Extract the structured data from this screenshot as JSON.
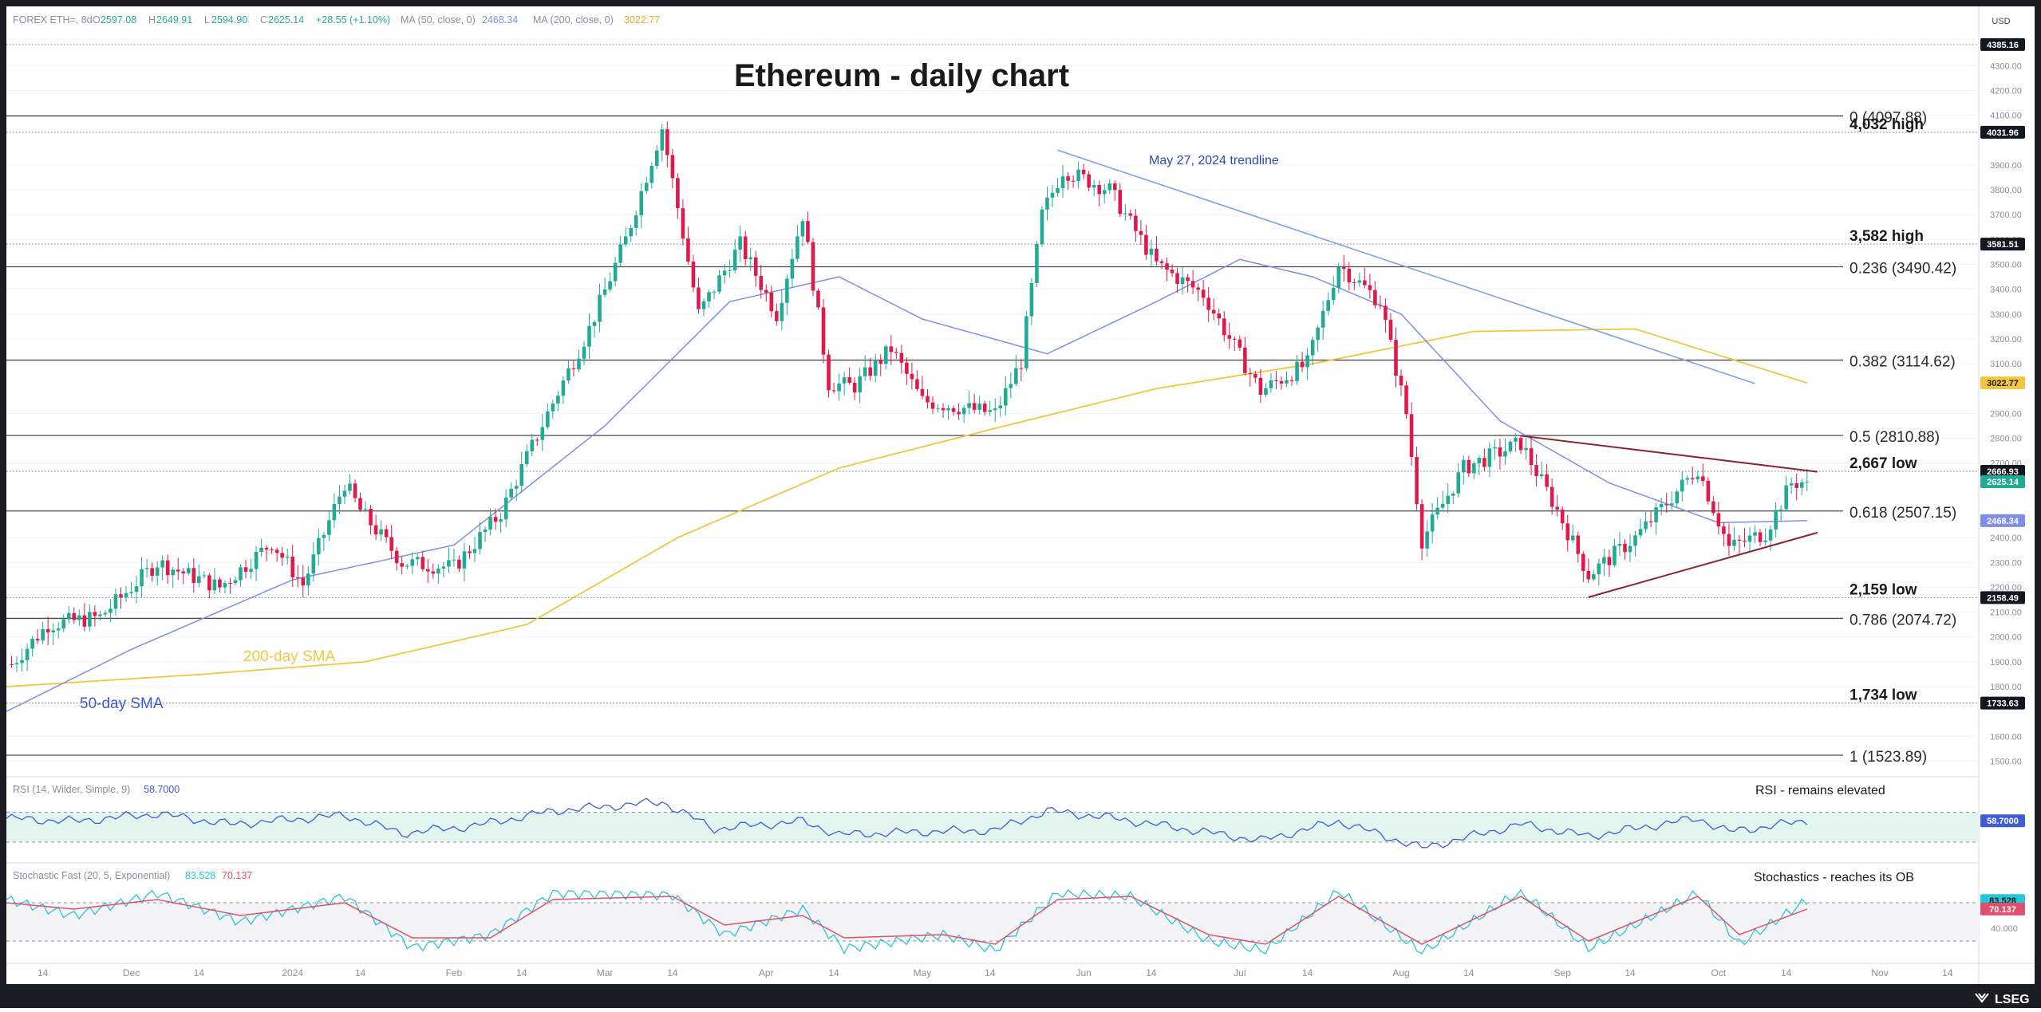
{
  "header": {
    "symbol": "FOREX ETH=, 8d",
    "open_label": "O",
    "open": "2597.08",
    "high_label": "H",
    "high": "2649.91",
    "low_label": "L",
    "low": "2594.90",
    "close_label": "C",
    "close": "2625.14",
    "change": "+28.55 (+1.10%)",
    "ma50_label": "MA (50, close, 0)",
    "ma50_value": "2468.34",
    "ma200_label": "MA (200, close, 0)",
    "ma200_value": "3022.77"
  },
  "colors": {
    "up": "#22ab94",
    "down": "#e0194a",
    "sma50": "#7f8ee8",
    "sma200": "#f2c641",
    "trendline": "#7b9fe8",
    "triangle": "#8c2232",
    "rsi": "#3f5dd6",
    "stoch_k": "#26c6da",
    "stoch_d": "#e0506e",
    "title": "#1a1a1a"
  },
  "chart_data": {
    "type": "line",
    "title": "Ethereum - daily chart",
    "currency": "USD",
    "price_axis": {
      "ylim": [
        1450,
        4420
      ],
      "ticks": [
        "4300.00",
        "4200.00",
        "4100.00",
        "3900.00",
        "3800.00",
        "3700.00",
        "3600.00",
        "3500.00",
        "3400.00",
        "3300.00",
        "3200.00",
        "3100.00",
        "2900.00",
        "2800.00",
        "2700.00",
        "2400.00",
        "2300.00",
        "2200.00",
        "2100.00",
        "2000.00",
        "1900.00",
        "1800.00",
        "1600.00",
        "1500.00"
      ],
      "tick_values": [
        4300,
        4200,
        4100,
        3900,
        3800,
        3700,
        3600,
        3500,
        3400,
        3300,
        3200,
        3100,
        2900,
        2800,
        2700,
        2400,
        2300,
        2200,
        2100,
        2000,
        1900,
        1800,
        1600,
        1500
      ]
    },
    "x_axis_labels": [
      "14",
      "Dec",
      "14",
      "2024",
      "14",
      "Feb",
      "14",
      "Mar",
      "14",
      "Apr",
      "14",
      "May",
      "14",
      "Jun",
      "14",
      "Jul",
      "14",
      "Aug",
      "14",
      "Sep",
      "14",
      "Oct",
      "14",
      "Nov",
      "14"
    ],
    "x_axis_dates": [
      "2023-11-14",
      "2023-12-01",
      "2023-12-14",
      "2024-01-01",
      "2024-01-14",
      "2024-02-01",
      "2024-02-14",
      "2024-03-01",
      "2024-03-14",
      "2024-04-01",
      "2024-04-14",
      "2024-05-01",
      "2024-05-14",
      "2024-06-01",
      "2024-06-14",
      "2024-07-01",
      "2024-07-14",
      "2024-08-01",
      "2024-08-14",
      "2024-09-01",
      "2024-09-14",
      "2024-10-01",
      "2024-10-14",
      "2024-11-01",
      "2024-11-14"
    ],
    "date_range": [
      "2023-11-07",
      "2024-11-20"
    ],
    "price_key_points": [
      [
        "2023-11-08",
        1890
      ],
      [
        "2023-11-15",
        2050
      ],
      [
        "2023-11-25",
        2080
      ],
      [
        "2023-12-06",
        2300
      ],
      [
        "2023-12-18",
        2200
      ],
      [
        "2023-12-28",
        2380
      ],
      [
        "2024-01-03",
        2210
      ],
      [
        "2024-01-11",
        2620
      ],
      [
        "2024-01-14",
        2510
      ],
      [
        "2024-01-22",
        2300
      ],
      [
        "2024-02-01",
        2280
      ],
      [
        "2024-02-10",
        2500
      ],
      [
        "2024-02-19",
        2900
      ],
      [
        "2024-02-27",
        3240
      ],
      [
        "2024-03-05",
        3600
      ],
      [
        "2024-03-12",
        4050
      ],
      [
        "2024-03-19",
        3300
      ],
      [
        "2024-03-27",
        3580
      ],
      [
        "2024-04-03",
        3300
      ],
      [
        "2024-04-08",
        3700
      ],
      [
        "2024-04-13",
        3020
      ],
      [
        "2024-04-18",
        3010
      ],
      [
        "2024-04-25",
        3160
      ],
      [
        "2024-05-01",
        2950
      ],
      [
        "2024-05-15",
        2900
      ],
      [
        "2024-05-20",
        3110
      ],
      [
        "2024-05-24",
        3700
      ],
      [
        "2024-05-28",
        3880
      ],
      [
        "2024-06-06",
        3800
      ],
      [
        "2024-06-15",
        3500
      ],
      [
        "2024-06-24",
        3380
      ],
      [
        "2024-07-05",
        2990
      ],
      [
        "2024-07-14",
        3100
      ],
      [
        "2024-07-20",
        3500
      ],
      [
        "2024-07-28",
        3350
      ],
      [
        "2024-08-02",
        2900
      ],
      [
        "2024-08-05",
        2390
      ],
      [
        "2024-08-13",
        2680
      ],
      [
        "2024-08-24",
        2780
      ],
      [
        "2024-08-31",
        2510
      ],
      [
        "2024-09-06",
        2250
      ],
      [
        "2024-09-15",
        2400
      ],
      [
        "2024-09-27",
        2680
      ],
      [
        "2024-10-03",
        2360
      ],
      [
        "2024-10-10",
        2420
      ],
      [
        "2024-10-15",
        2620
      ],
      [
        "2024-10-18",
        2625.14
      ]
    ],
    "sma50_points": [
      [
        "2023-11-07",
        1700
      ],
      [
        "2023-12-01",
        1950
      ],
      [
        "2024-01-01",
        2230
      ],
      [
        "2024-02-01",
        2370
      ],
      [
        "2024-03-01",
        2850
      ],
      [
        "2024-03-25",
        3350
      ],
      [
        "2024-04-15",
        3450
      ],
      [
        "2024-05-01",
        3280
      ],
      [
        "2024-05-25",
        3140
      ],
      [
        "2024-06-15",
        3350
      ],
      [
        "2024-07-01",
        3520
      ],
      [
        "2024-07-15",
        3450
      ],
      [
        "2024-08-01",
        3300
      ],
      [
        "2024-08-20",
        2870
      ],
      [
        "2024-09-10",
        2620
      ],
      [
        "2024-10-01",
        2460
      ],
      [
        "2024-10-18",
        2468.34
      ]
    ],
    "sma200_points": [
      [
        "2023-11-07",
        1800
      ],
      [
        "2023-12-15",
        1850
      ],
      [
        "2024-01-15",
        1900
      ],
      [
        "2024-02-15",
        2050
      ],
      [
        "2024-03-15",
        2400
      ],
      [
        "2024-04-15",
        2680
      ],
      [
        "2024-05-15",
        2840
      ],
      [
        "2024-06-15",
        3000
      ],
      [
        "2024-07-15",
        3100
      ],
      [
        "2024-08-15",
        3230
      ],
      [
        "2024-09-15",
        3240
      ],
      [
        "2024-10-18",
        3022.77
      ]
    ],
    "fib_levels": [
      {
        "label": "0 (4097.88)",
        "value": 4097.88
      },
      {
        "label": "0.236 (3490.42)",
        "value": 3490.42
      },
      {
        "label": "0.382 (3114.62)",
        "value": 3114.62
      },
      {
        "label": "0.5 (2810.88)",
        "value": 2810.88
      },
      {
        "label": "0.618 (2507.15)",
        "value": 2507.15
      },
      {
        "label": "0.786 (2074.72)",
        "value": 2074.72
      },
      {
        "label": "1 (1523.89)",
        "value": 1523.89
      }
    ],
    "dotted_levels": [
      {
        "label": "4,032 high",
        "value": 4031.96,
        "tag": "4031.96"
      },
      {
        "label": "3,582 high",
        "value": 3581.51,
        "tag": "3581.51"
      },
      {
        "label": "2,667 low",
        "value": 2666.93,
        "tag": "2666.93"
      },
      {
        "label": "2,159 low",
        "value": 2158.49,
        "tag": "2158.49"
      },
      {
        "label": "1,734 low",
        "value": 1733.63,
        "tag": "1733.63"
      }
    ],
    "extra_dotted_level": {
      "value": 4385.16,
      "tag": "4385.16"
    },
    "price_tags": [
      {
        "text": "2625.14",
        "value": 2625.14,
        "color": "#22ab94"
      },
      {
        "text": "2468.34",
        "value": 2468.34,
        "color": "#7f8ee8"
      },
      {
        "text": "3022.77",
        "value": 3022.77,
        "color": "#f2c641"
      }
    ],
    "trendline": {
      "label": "May 27, 2024 trendline",
      "from": [
        "2024-05-27",
        3960
      ],
      "to": [
        "2024-10-08",
        3020
      ]
    },
    "triangle_upper": {
      "from": [
        "2024-08-24",
        2810
      ],
      "to": [
        "2024-10-20",
        2665
      ]
    },
    "triangle_lower": {
      "from": [
        "2024-09-06",
        2160
      ],
      "to": [
        "2024-10-20",
        2420
      ]
    },
    "annotations": {
      "sma200_label": "200-day SMA",
      "sma50_label": "50-day SMA"
    },
    "rsi": {
      "header": "RSI (14, Wilder, Simple, 9)",
      "value": "58.7000",
      "note": "RSI - remains elevated",
      "ylim": [
        15,
        90
      ],
      "ob": 70,
      "os": 30,
      "points": [
        [
          "2023-11-07",
          62
        ],
        [
          "2023-11-20",
          58
        ],
        [
          "2023-12-06",
          68
        ],
        [
          "2023-12-20",
          54
        ],
        [
          "2024-01-11",
          66
        ],
        [
          "2024-01-22",
          42
        ],
        [
          "2024-02-05",
          52
        ],
        [
          "2024-02-20",
          72
        ],
        [
          "2024-03-12",
          84
        ],
        [
          "2024-03-22",
          48
        ],
        [
          "2024-04-08",
          58
        ],
        [
          "2024-04-15",
          40
        ],
        [
          "2024-05-01",
          44
        ],
        [
          "2024-05-15",
          46
        ],
        [
          "2024-05-25",
          72
        ],
        [
          "2024-06-07",
          62
        ],
        [
          "2024-06-24",
          44
        ],
        [
          "2024-07-05",
          32
        ],
        [
          "2024-07-20",
          58
        ],
        [
          "2024-08-05",
          22
        ],
        [
          "2024-08-24",
          54
        ],
        [
          "2024-09-06",
          38
        ],
        [
          "2024-09-27",
          62
        ],
        [
          "2024-10-03",
          44
        ],
        [
          "2024-10-18",
          58.7
        ]
      ]
    },
    "stochastic": {
      "header": "Stochastic Fast (20, 5, Exponential)",
      "k_value": "83.528",
      "d_value": "70.137",
      "note": "Stochastics - reaches its OB",
      "ylim": [
        -5,
        110
      ],
      "ob": 80,
      "os": 20,
      "tick": "40.000",
      "k_points": [
        [
          "2023-11-07",
          85
        ],
        [
          "2023-11-20",
          60
        ],
        [
          "2023-12-06",
          95
        ],
        [
          "2023-12-22",
          50
        ],
        [
          "2024-01-11",
          90
        ],
        [
          "2024-01-24",
          10
        ],
        [
          "2024-02-08",
          30
        ],
        [
          "2024-02-20",
          95
        ],
        [
          "2024-03-14",
          92
        ],
        [
          "2024-03-24",
          30
        ],
        [
          "2024-04-08",
          70
        ],
        [
          "2024-04-16",
          8
        ],
        [
          "2024-05-05",
          30
        ],
        [
          "2024-05-15",
          5
        ],
        [
          "2024-05-27",
          95
        ],
        [
          "2024-06-10",
          90
        ],
        [
          "2024-06-25",
          20
        ],
        [
          "2024-07-06",
          5
        ],
        [
          "2024-07-20",
          98
        ],
        [
          "2024-08-05",
          2
        ],
        [
          "2024-08-24",
          98
        ],
        [
          "2024-09-06",
          8
        ],
        [
          "2024-09-27",
          95
        ],
        [
          "2024-10-05",
          15
        ],
        [
          "2024-10-18",
          83.5
        ]
      ],
      "d_points": [
        [
          "2023-11-07",
          80
        ],
        [
          "2023-11-20",
          70
        ],
        [
          "2023-12-06",
          85
        ],
        [
          "2023-12-22",
          60
        ],
        [
          "2024-01-11",
          80
        ],
        [
          "2024-01-24",
          25
        ],
        [
          "2024-02-08",
          25
        ],
        [
          "2024-02-20",
          85
        ],
        [
          "2024-03-14",
          90
        ],
        [
          "2024-03-24",
          45
        ],
        [
          "2024-04-08",
          60
        ],
        [
          "2024-04-16",
          25
        ],
        [
          "2024-05-05",
          30
        ],
        [
          "2024-05-15",
          15
        ],
        [
          "2024-05-27",
          85
        ],
        [
          "2024-06-10",
          90
        ],
        [
          "2024-06-25",
          30
        ],
        [
          "2024-07-06",
          15
        ],
        [
          "2024-07-20",
          90
        ],
        [
          "2024-08-05",
          15
        ],
        [
          "2024-08-24",
          90
        ],
        [
          "2024-09-06",
          20
        ],
        [
          "2024-09-27",
          90
        ],
        [
          "2024-10-05",
          30
        ],
        [
          "2024-10-18",
          70.1
        ]
      ]
    }
  },
  "footer": {
    "brand": "LSEG"
  }
}
